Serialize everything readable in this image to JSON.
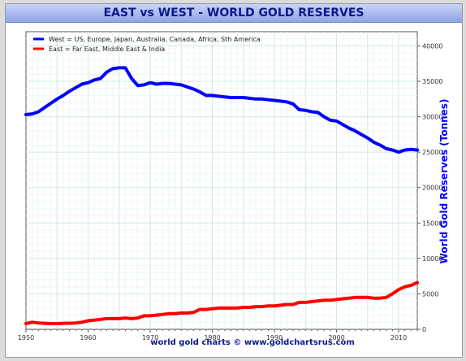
{
  "chart_data": {
    "type": "line",
    "title": "EAST vs WEST - WORLD GOLD RESERVES",
    "ylabel": "World Gold Reserves (Tonnes)",
    "xlabel": "",
    "footer": "world gold charts © www.goldchartsrus.com",
    "xlim": [
      1950,
      2013
    ],
    "ylim": [
      0,
      42000
    ],
    "x_ticks": [
      "1950",
      "1960",
      "1970",
      "1980",
      "1990",
      "2000",
      "2010"
    ],
    "y_ticks": [
      "0",
      "5000",
      "10000",
      "15000",
      "20000",
      "25000",
      "30000",
      "35000",
      "40000"
    ],
    "grid": true,
    "legend_position": "top-left",
    "series": [
      {
        "name": "West = US, Europe, Japan, Australia, Canada, Africa, Sth America",
        "color": "#0000ff",
        "x": [
          1950,
          1951,
          1952,
          1953,
          1954,
          1955,
          1956,
          1957,
          1958,
          1959,
          1960,
          1961,
          1962,
          1963,
          1964,
          1965,
          1966,
          1967,
          1968,
          1969,
          1970,
          1971,
          1972,
          1973,
          1974,
          1975,
          1976,
          1977,
          1978,
          1979,
          1980,
          1981,
          1982,
          1983,
          1984,
          1985,
          1986,
          1987,
          1988,
          1989,
          1990,
          1991,
          1992,
          1993,
          1994,
          1995,
          1996,
          1997,
          1998,
          1999,
          2000,
          2001,
          2002,
          2003,
          2004,
          2005,
          2006,
          2007,
          2008,
          2009,
          2010,
          2011,
          2012,
          2013
        ],
        "values": [
          30300,
          30400,
          30700,
          31300,
          31900,
          32500,
          33000,
          33600,
          34100,
          34600,
          34800,
          35200,
          35400,
          36300,
          36800,
          36900,
          36900,
          35400,
          34400,
          34500,
          34800,
          34600,
          34700,
          34700,
          34600,
          34500,
          34200,
          33900,
          33500,
          33000,
          33000,
          32900,
          32800,
          32700,
          32700,
          32700,
          32600,
          32500,
          32500,
          32400,
          32300,
          32200,
          32100,
          31800,
          31000,
          30900,
          30700,
          30600,
          30000,
          29500,
          29400,
          28900,
          28400,
          28000,
          27500,
          27000,
          26400,
          26000,
          25500,
          25300,
          25000,
          25300,
          25400,
          25300
        ]
      },
      {
        "name": "East = Far East, Middle East & India",
        "color": "#ff0000",
        "x": [
          1950,
          1951,
          1952,
          1953,
          1954,
          1955,
          1956,
          1957,
          1958,
          1959,
          1960,
          1961,
          1962,
          1963,
          1964,
          1965,
          1966,
          1967,
          1968,
          1969,
          1970,
          1971,
          1972,
          1973,
          1974,
          1975,
          1976,
          1977,
          1978,
          1979,
          1980,
          1981,
          1982,
          1983,
          1984,
          1985,
          1986,
          1987,
          1988,
          1989,
          1990,
          1991,
          1992,
          1993,
          1994,
          1995,
          1996,
          1997,
          1998,
          1999,
          2000,
          2001,
          2002,
          2003,
          2004,
          2005,
          2006,
          2007,
          2008,
          2009,
          2010,
          2011,
          2012,
          2013
        ],
        "values": [
          800,
          1000,
          900,
          850,
          800,
          800,
          850,
          850,
          900,
          1000,
          1200,
          1300,
          1400,
          1500,
          1500,
          1500,
          1600,
          1500,
          1600,
          1900,
          1900,
          2000,
          2100,
          2200,
          2200,
          2300,
          2300,
          2400,
          2800,
          2800,
          2900,
          3000,
          3000,
          3000,
          3000,
          3100,
          3100,
          3200,
          3200,
          3300,
          3300,
          3400,
          3500,
          3500,
          3800,
          3800,
          3900,
          4000,
          4100,
          4100,
          4200,
          4300,
          4400,
          4500,
          4500,
          4500,
          4400,
          4400,
          4500,
          5000,
          5600,
          6000,
          6200,
          6600
        ]
      }
    ]
  }
}
